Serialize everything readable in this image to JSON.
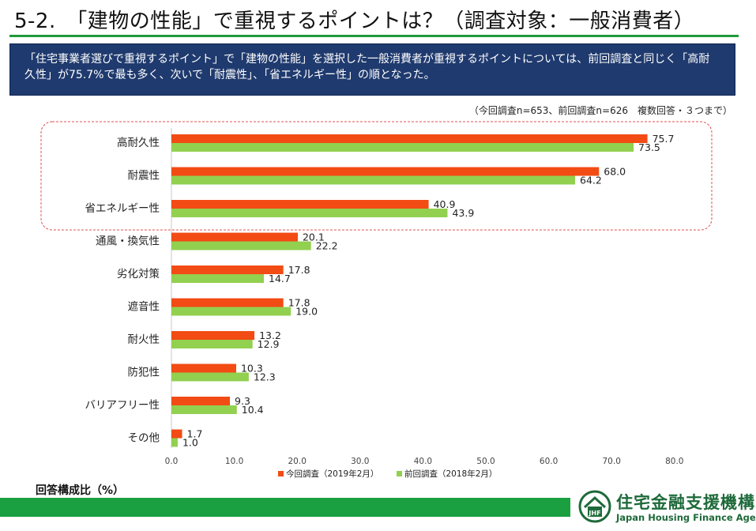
{
  "header": {
    "title": "5-2.　「建物の性能」で重視するポイントは？（調査対象：一般消費者）"
  },
  "summary": {
    "text": "「住宅事業者選びで重視するポイント」で「建物の性能」を選択した一般消費者が重視するポイントについては、前回調査と同じく「高耐久性」が75.7%で最も多く、次いで「耐震性」、「省エネルギー性」の順となった。"
  },
  "note": "（今回調査n=653、前回調査n=626　複数回答・３つまで）",
  "unit_label": "回答構成比（%）",
  "colors": {
    "current": "#f24b14",
    "previous": "#92d050",
    "highlight_border": "#e05050",
    "axis": "#c8c8c8",
    "green_bar": "#1aa040",
    "header_box": "#1f3a6e"
  },
  "logo": {
    "name_jp": "住宅金融支援機構",
    "name_en": "Japan Housing Finance Agency",
    "mark_text": "JHF",
    "icon": "house-logo-icon"
  },
  "chart_data": {
    "type": "bar",
    "orientation": "horizontal",
    "categories": [
      "高耐久性",
      "耐震性",
      "省エネルギー性",
      "通風・換気性",
      "劣化対策",
      "遮音性",
      "耐火性",
      "防犯性",
      "バリアフリー性",
      "その他"
    ],
    "series": [
      {
        "name": "今回調査（2019年2月）",
        "values": [
          75.7,
          68.0,
          40.9,
          20.1,
          17.8,
          17.8,
          13.2,
          10.3,
          9.3,
          1.7
        ]
      },
      {
        "name": "前回調査（2018年2月）",
        "values": [
          73.5,
          64.2,
          43.9,
          22.2,
          14.7,
          19.0,
          12.9,
          12.3,
          10.4,
          1.0
        ]
      }
    ],
    "x_ticks": [
      "0.0",
      "10.0",
      "20.0",
      "30.0",
      "40.0",
      "50.0",
      "60.0",
      "70.0",
      "80.0"
    ],
    "xlim": [
      0,
      80
    ],
    "highlighted_categories": [
      "高耐久性",
      "耐震性",
      "省エネルギー性"
    ],
    "legend_position": "bottom",
    "grid": false
  }
}
